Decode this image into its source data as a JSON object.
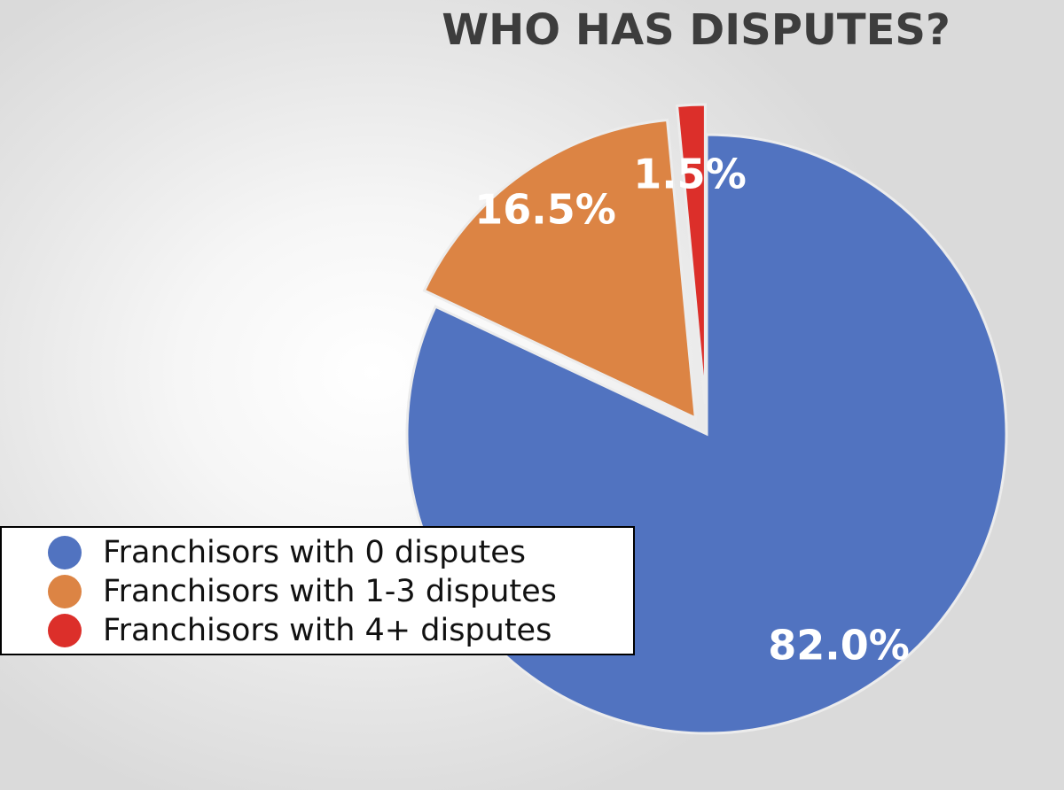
{
  "chart_data": {
    "type": "pie",
    "title": "WHO HAS DISPUTES?",
    "categories": [
      "Franchisors with 0 disputes",
      "Franchisors with 1-3 disputes",
      "Franchisors with 4+ disputes"
    ],
    "values": [
      82.0,
      16.5,
      1.5
    ],
    "data_labels": [
      "82.0%",
      "16.5%",
      "1.5%"
    ],
    "colors": [
      "#5173c0",
      "#dc8444",
      "#dc2f2a"
    ],
    "start_angle": "12 o'clock, clockwise",
    "exploded_slices": [
      "Franchisors with 1-3 disputes",
      "Franchisors with 4+ disputes"
    ],
    "legend_placement": "bottom-left"
  }
}
